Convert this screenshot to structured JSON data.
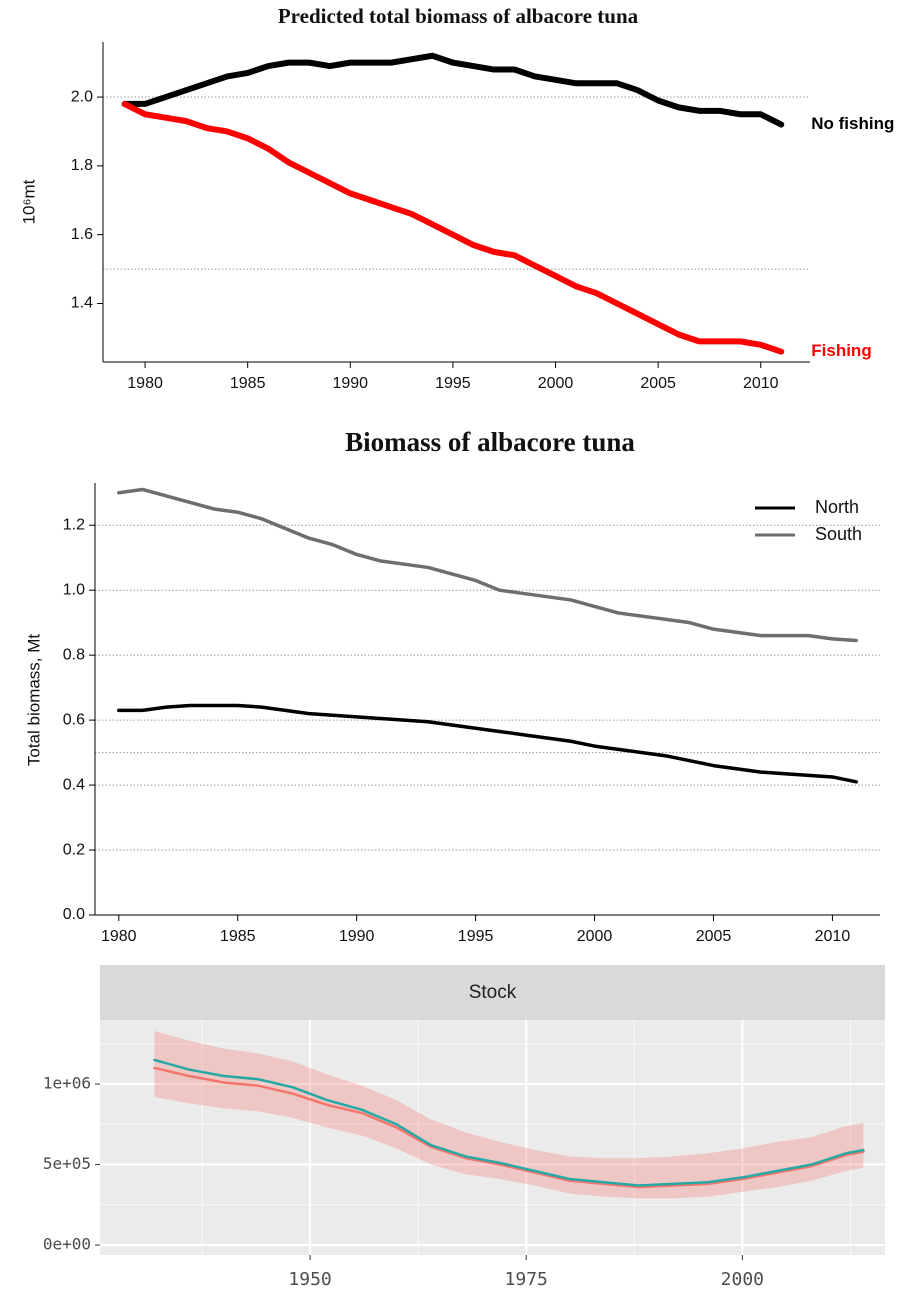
{
  "chart_data": [
    {
      "type": "line",
      "title": "Predicted total biomass of albacore tuna",
      "y_label": "10⁶mt",
      "x": [
        1979,
        1980,
        1981,
        1982,
        1983,
        1984,
        1985,
        1986,
        1987,
        1988,
        1989,
        1990,
        1991,
        1992,
        1993,
        1994,
        1995,
        1996,
        1997,
        1998,
        1999,
        2000,
        2001,
        2002,
        2003,
        2004,
        2005,
        2006,
        2007,
        2008,
        2009,
        2010,
        2011
      ],
      "series": [
        {
          "name": "No fishing",
          "color": "#000000",
          "values": [
            1.98,
            1.98,
            2.0,
            2.02,
            2.04,
            2.06,
            2.07,
            2.09,
            2.1,
            2.1,
            2.09,
            2.1,
            2.1,
            2.1,
            2.11,
            2.12,
            2.1,
            2.09,
            2.08,
            2.08,
            2.06,
            2.05,
            2.04,
            2.04,
            2.04,
            2.02,
            1.99,
            1.97,
            1.96,
            1.96,
            1.95,
            1.95,
            1.92
          ]
        },
        {
          "name": "Fishing",
          "color": "#ff0000",
          "values": [
            1.98,
            1.95,
            1.94,
            1.93,
            1.91,
            1.9,
            1.88,
            1.85,
            1.81,
            1.78,
            1.75,
            1.72,
            1.7,
            1.68,
            1.66,
            1.63,
            1.6,
            1.57,
            1.55,
            1.54,
            1.51,
            1.48,
            1.45,
            1.43,
            1.4,
            1.37,
            1.34,
            1.31,
            1.29,
            1.29,
            1.29,
            1.28,
            1.26
          ]
        }
      ],
      "xlim": [
        1977.95,
        2012.4
      ],
      "xticks": [
        1980,
        1985,
        1990,
        1995,
        2000,
        2005,
        2010
      ],
      "ylim": [
        1.23,
        2.16
      ],
      "yticks": [
        1.4,
        1.6,
        1.8,
        {
          "value": 2.0,
          "label": "2.0"
        }
      ],
      "grid": false,
      "reference_lines": [
        2.0,
        1.5
      ],
      "legend": "end"
    },
    {
      "type": "line",
      "title": "Biomass of albacore tuna",
      "y_label": "Total biomass, Mt",
      "x": [
        1980,
        1981,
        1982,
        1983,
        1984,
        1985,
        1986,
        1987,
        1988,
        1989,
        1990,
        1991,
        1992,
        1993,
        1994,
        1995,
        1996,
        1997,
        1998,
        1999,
        2000,
        2001,
        2002,
        2003,
        2004,
        2005,
        2006,
        2007,
        2008,
        2009,
        2010,
        2011
      ],
      "series": [
        {
          "name": "North",
          "color": "#000000",
          "values": [
            0.63,
            0.63,
            0.64,
            0.645,
            0.645,
            0.645,
            0.64,
            0.63,
            0.62,
            0.615,
            0.61,
            0.605,
            0.6,
            0.595,
            0.585,
            0.575,
            0.565,
            0.555,
            0.545,
            0.535,
            0.52,
            0.51,
            0.5,
            0.49,
            0.475,
            0.46,
            0.45,
            0.44,
            0.435,
            0.43,
            0.425,
            0.41
          ]
        },
        {
          "name": "South",
          "color": "#6e6e6e",
          "values": [
            1.3,
            1.31,
            1.29,
            1.27,
            1.25,
            1.24,
            1.22,
            1.19,
            1.16,
            1.14,
            1.11,
            1.09,
            1.08,
            1.07,
            1.05,
            1.03,
            1.0,
            0.99,
            0.98,
            0.97,
            0.95,
            0.93,
            0.92,
            0.91,
            0.9,
            0.88,
            0.87,
            0.86,
            0.86,
            0.86,
            0.85,
            0.845
          ]
        }
      ],
      "xlim": [
        1979,
        2012
      ],
      "xticks": [
        1980,
        1985,
        1990,
        1995,
        2000,
        2005,
        2010
      ],
      "ylim": [
        0,
        1.33
      ],
      "yticks": [
        {
          "value": 0,
          "label": "0.0"
        },
        0.2,
        0.4,
        0.6,
        0.8,
        {
          "value": 1,
          "label": "1.0"
        },
        1.2
      ],
      "grid": true,
      "reference_lines": [
        0.5
      ],
      "legend": "top-right"
    },
    {
      "type": "line",
      "facet_label": "Stock",
      "x": [
        1932,
        1936,
        1940,
        1944,
        1948,
        1952,
        1956,
        1960,
        1964,
        1968,
        1972,
        1976,
        1980,
        1984,
        1988,
        1992,
        1996,
        2000,
        2004,
        2008,
        2012,
        2014
      ],
      "series": [
        {
          "color": "#f4756c",
          "values": [
            1100000,
            1050000,
            1010000,
            990000,
            940000,
            870000,
            820000,
            730000,
            610000,
            540000,
            500000,
            450000,
            400000,
            380000,
            360000,
            370000,
            380000,
            410000,
            450000,
            490000,
            560000,
            580000
          ],
          "lower": [
            920000,
            880000,
            850000,
            830000,
            790000,
            730000,
            680000,
            600000,
            500000,
            440000,
            410000,
            370000,
            320000,
            300000,
            290000,
            290000,
            300000,
            330000,
            360000,
            400000,
            460000,
            480000
          ],
          "upper": [
            1330000,
            1270000,
            1220000,
            1190000,
            1140000,
            1060000,
            990000,
            900000,
            780000,
            700000,
            640000,
            590000,
            550000,
            540000,
            540000,
            550000,
            570000,
            600000,
            640000,
            670000,
            740000,
            760000
          ]
        },
        {
          "color": "#26a9a4",
          "values": [
            1150000,
            1090000,
            1050000,
            1030000,
            980000,
            900000,
            840000,
            750000,
            620000,
            550000,
            510000,
            460000,
            410000,
            390000,
            370000,
            380000,
            390000,
            420000,
            460000,
            500000,
            570000,
            590000
          ]
        }
      ],
      "xlim": [
        1925.7,
        2016.5
      ],
      "xticks": [
        1950,
        1975,
        2000
      ],
      "ylim": [
        -62000,
        1398000
      ],
      "yticks": [
        {
          "value": 0,
          "label": "0e+00"
        },
        {
          "value": 500000,
          "label": "5e+05"
        },
        {
          "value": 1000000,
          "label": "1e+06"
        }
      ],
      "grid": true
    }
  ]
}
